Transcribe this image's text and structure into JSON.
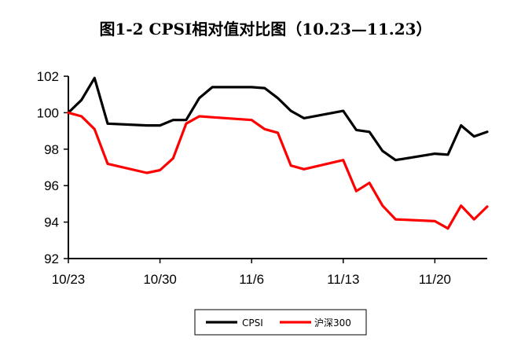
{
  "chart_data": {
    "type": "line",
    "title": "图1-2 CPSI相对值对比图（10.23—11.23）",
    "xlabel": "",
    "ylabel": "",
    "ylim": [
      92,
      102
    ],
    "yticks": [
      92,
      94,
      96,
      98,
      100,
      102
    ],
    "x_start": "10/23",
    "x_end": "11/23",
    "xticks": [
      {
        "label": "10/23",
        "day": 0
      },
      {
        "label": "10/30",
        "day": 7
      },
      {
        "label": "11/6",
        "day": 14
      },
      {
        "label": "11/13",
        "day": 21
      },
      {
        "label": "11/20",
        "day": 28
      }
    ],
    "grid": false,
    "legend": "bottom-center",
    "series": [
      {
        "name": "CPSI",
        "color": "#000000",
        "points": [
          [
            "10/23",
            100.0
          ],
          [
            "10/24",
            100.7
          ],
          [
            "10/25",
            101.9
          ],
          [
            "10/26",
            99.4
          ],
          [
            "10/29",
            99.3
          ],
          [
            "10/30",
            99.3
          ],
          [
            "10/31",
            99.6
          ],
          [
            "11/1",
            99.6
          ],
          [
            "11/2",
            100.8
          ],
          [
            "11/3",
            101.4
          ],
          [
            "11/6",
            101.4
          ],
          [
            "11/7",
            101.35
          ],
          [
            "11/8",
            100.8
          ],
          [
            "11/9",
            100.1
          ],
          [
            "11/10",
            99.7
          ],
          [
            "11/13",
            100.1
          ],
          [
            "11/14",
            99.05
          ],
          [
            "11/15",
            98.95
          ],
          [
            "11/16",
            97.9
          ],
          [
            "11/17",
            97.4
          ],
          [
            "11/20",
            97.75
          ],
          [
            "11/21",
            97.7
          ],
          [
            "11/22",
            99.3
          ],
          [
            "11/23",
            98.7
          ],
          [
            "11/24",
            98.95
          ]
        ]
      },
      {
        "name": "沪深300",
        "color": "#ff0000",
        "points": [
          [
            "10/23",
            100.0
          ],
          [
            "10/24",
            99.8
          ],
          [
            "10/25",
            99.1
          ],
          [
            "10/26",
            97.2
          ],
          [
            "10/29",
            96.7
          ],
          [
            "10/30",
            96.85
          ],
          [
            "10/31",
            97.5
          ],
          [
            "11/1",
            99.4
          ],
          [
            "11/2",
            99.8
          ],
          [
            "11/3",
            99.75
          ],
          [
            "11/6",
            99.6
          ],
          [
            "11/7",
            99.1
          ],
          [
            "11/8",
            98.9
          ],
          [
            "11/9",
            97.1
          ],
          [
            "11/10",
            96.9
          ],
          [
            "11/13",
            97.4
          ],
          [
            "11/14",
            95.7
          ],
          [
            "11/15",
            96.15
          ],
          [
            "11/16",
            94.9
          ],
          [
            "11/17",
            94.15
          ],
          [
            "11/20",
            94.05
          ],
          [
            "11/21",
            93.65
          ],
          [
            "11/22",
            94.9
          ],
          [
            "11/23",
            94.15
          ],
          [
            "11/24",
            94.85
          ]
        ]
      }
    ]
  }
}
